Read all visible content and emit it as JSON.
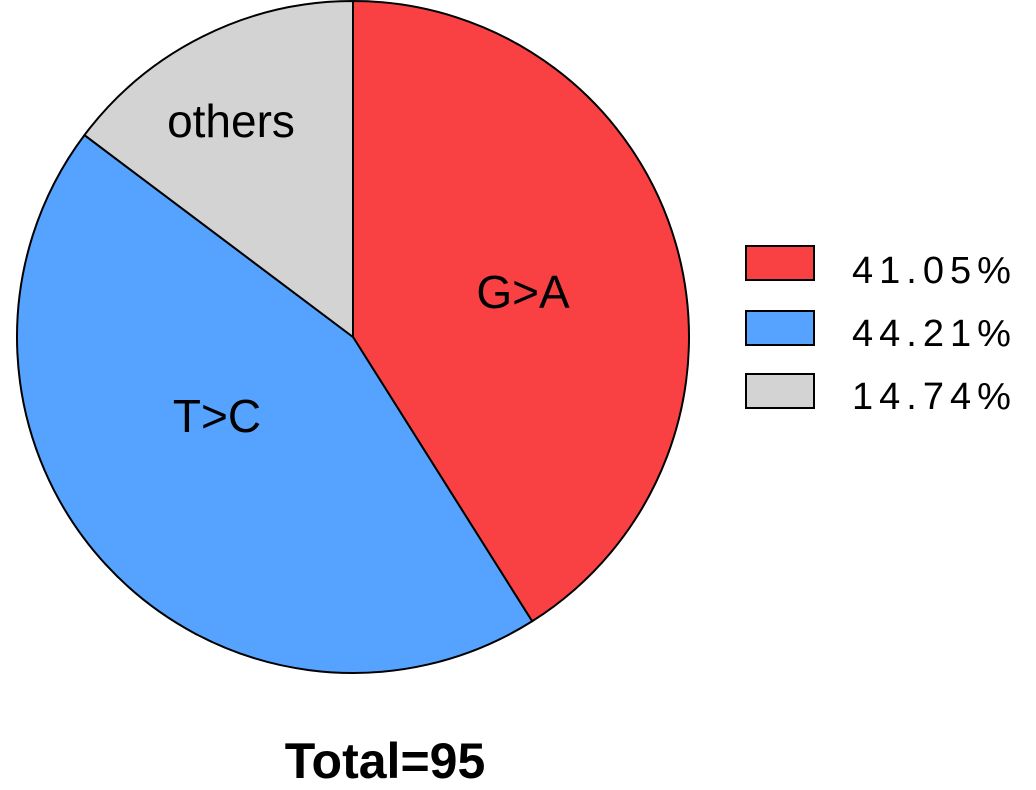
{
  "chart_data": {
    "type": "pie",
    "total_label": "Total=95",
    "start_angle_deg": 0,
    "direction": "clockwise",
    "slices": [
      {
        "label": "G>A",
        "legend_label": "41.05%",
        "value": 41.05,
        "color": "#f94144"
      },
      {
        "label": "T>C",
        "legend_label": "44.21%",
        "value": 44.21,
        "color": "#55a3ff"
      },
      {
        "label": "others",
        "legend_label": "14.74%",
        "value": 14.74,
        "color": "#d3d3d3"
      }
    ],
    "legend_position": "right",
    "slice_edge_color": "#000000"
  }
}
